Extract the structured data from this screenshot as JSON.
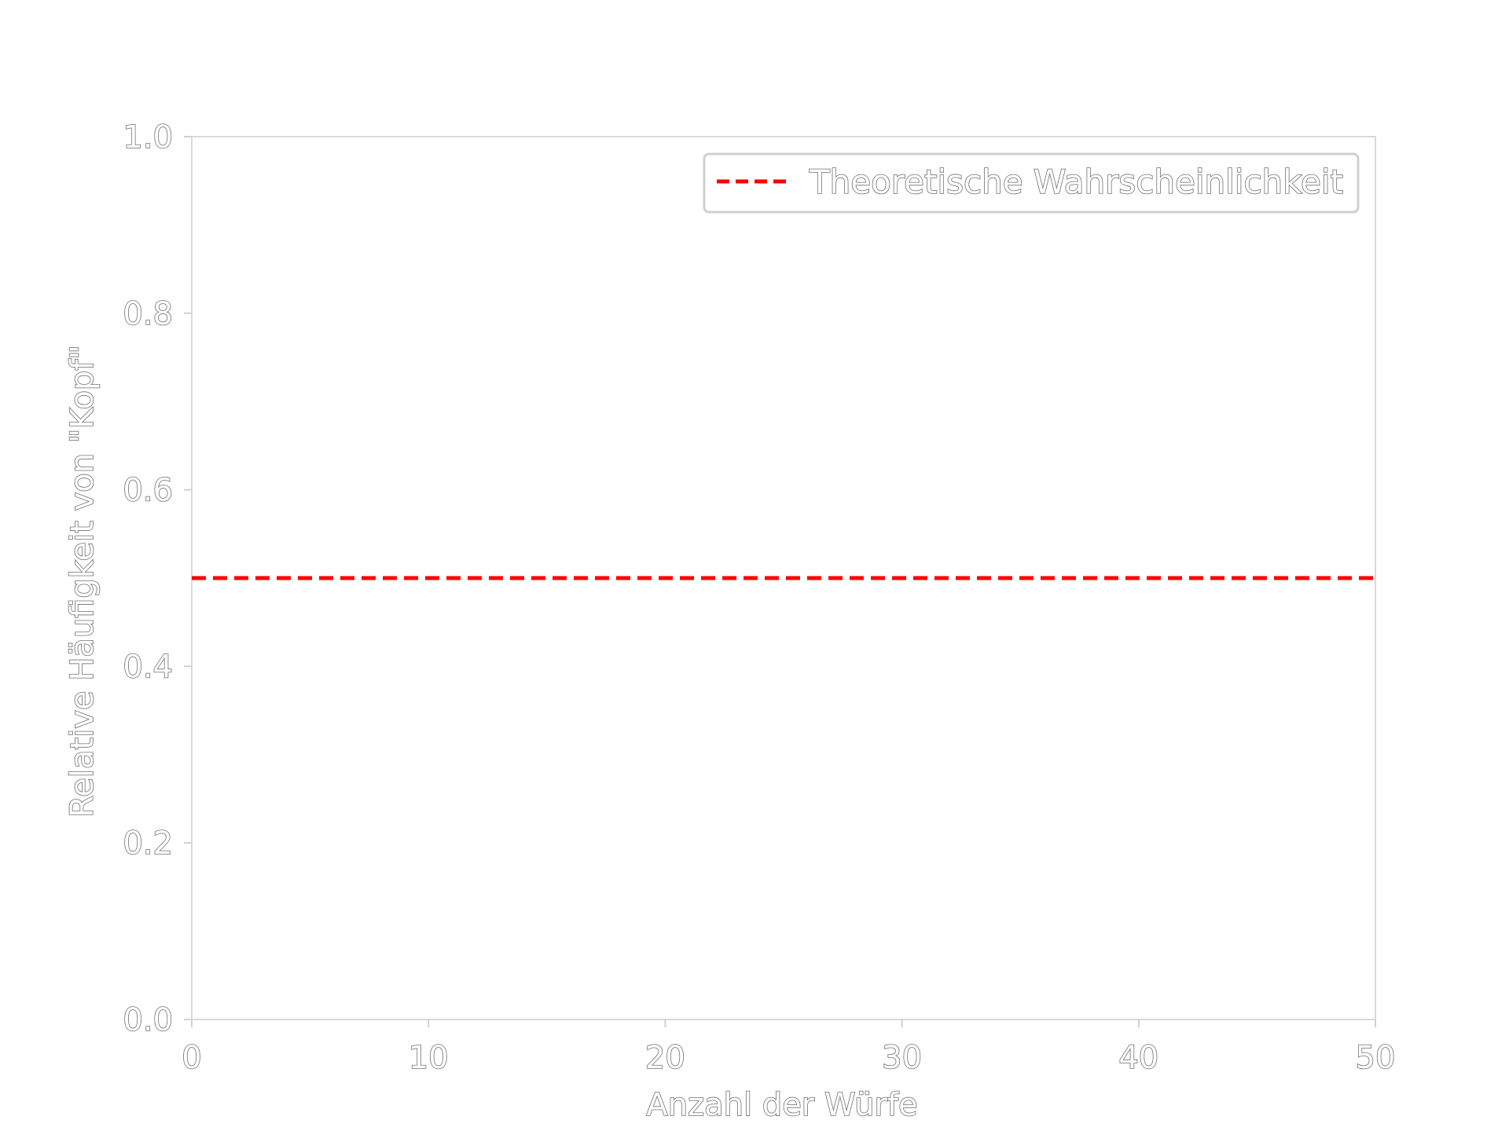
{
  "chart_data": {
    "type": "line",
    "title": "",
    "xlabel": "Anzahl der Würfe",
    "ylabel": "Relative Häufigkeit von \"Kopf\"",
    "xlim": [
      0,
      50
    ],
    "ylim": [
      0,
      1.0
    ],
    "xticks": [
      0,
      10,
      20,
      30,
      40,
      50
    ],
    "xtick_labels": [
      "0",
      "10",
      "20",
      "30",
      "40",
      "50"
    ],
    "yticks": [
      0.0,
      0.2,
      0.4,
      0.6,
      0.8,
      1.0
    ],
    "ytick_labels": [
      "0.0",
      "0.2",
      "0.4",
      "0.6",
      "0.8",
      "1.0"
    ],
    "grid": false,
    "legend_position": "top-right",
    "series": [
      {
        "name": "Theoretische Wahrscheinlichkeit",
        "style": "dashed",
        "color": "#ff0000",
        "x": [
          0,
          50
        ],
        "y": [
          0.5,
          0.5
        ]
      }
    ]
  }
}
